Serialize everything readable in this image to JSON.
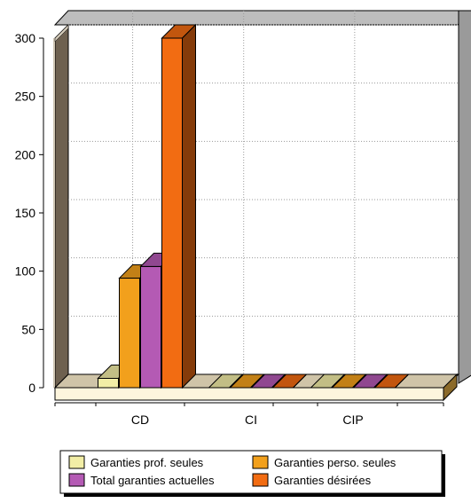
{
  "chart_data": {
    "type": "bar",
    "categories": [
      "CD",
      "CI",
      "CIP"
    ],
    "series": [
      {
        "name": "Garanties prof. seules",
        "values": [
          8,
          0,
          0
        ],
        "color": "#F2EEA6"
      },
      {
        "name": "Garanties perso. seules",
        "values": [
          94,
          0,
          0
        ],
        "color": "#F2A01C"
      },
      {
        "name": "Total garanties actuelles",
        "values": [
          104,
          0,
          0
        ],
        "color": "#B45AB4"
      },
      {
        "name": "Garanties désirées",
        "values": [
          300,
          0,
          0
        ],
        "color": "#F26C12"
      }
    ],
    "yticks": [
      "0",
      "50",
      "100",
      "150",
      "200",
      "250",
      "300"
    ],
    "ylim": [
      0,
      300
    ],
    "grid": true,
    "legend_position": "bottom",
    "style": "3d",
    "wall_color": "#6E6150",
    "floor_color": "#FDF5DD"
  }
}
